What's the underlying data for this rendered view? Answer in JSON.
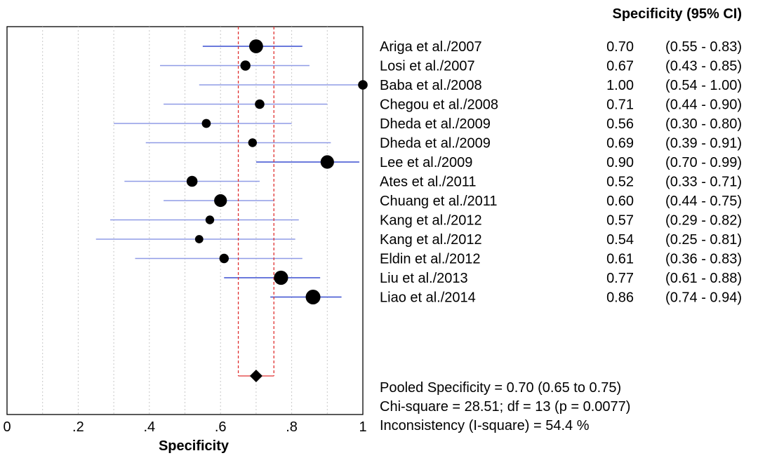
{
  "chart_data": {
    "type": "forest",
    "column_header": "Specificity (95% CI)",
    "xlabel": "Specificity",
    "xlim": [
      0,
      1
    ],
    "x_ticks": [
      "0",
      ".2",
      ".4",
      ".6",
      ".8",
      "1"
    ],
    "grid": "vertical-dotted",
    "studies": [
      {
        "label": "Ariga et al./2007",
        "value": 0.7,
        "ci": [
          0.55,
          0.83
        ],
        "estimate_text": "0.70",
        "ci_text": "(0.55 - 0.83)"
      },
      {
        "label": "Losi et al./2007",
        "value": 0.67,
        "ci": [
          0.43,
          0.85
        ],
        "estimate_text": "0.67",
        "ci_text": "(0.43 - 0.85)"
      },
      {
        "label": "Baba et al./2008",
        "value": 1.0,
        "ci": [
          0.54,
          1.0
        ],
        "estimate_text": "1.00",
        "ci_text": "(0.54 - 1.00)"
      },
      {
        "label": "Chegou et al./2008",
        "value": 0.71,
        "ci": [
          0.44,
          0.9
        ],
        "estimate_text": "0.71",
        "ci_text": "(0.44 - 0.90)"
      },
      {
        "label": "Dheda et al./2009",
        "value": 0.56,
        "ci": [
          0.3,
          0.8
        ],
        "estimate_text": "0.56",
        "ci_text": "(0.30 - 0.80)"
      },
      {
        "label": "Dheda et al./2009",
        "value": 0.69,
        "ci": [
          0.39,
          0.91
        ],
        "estimate_text": "0.69",
        "ci_text": "(0.39 - 0.91)"
      },
      {
        "label": "Lee et al./2009",
        "value": 0.9,
        "ci": [
          0.7,
          0.99
        ],
        "estimate_text": "0.90",
        "ci_text": "(0.70 - 0.99)"
      },
      {
        "label": "Ates et al./2011",
        "value": 0.52,
        "ci": [
          0.33,
          0.71
        ],
        "estimate_text": "0.52",
        "ci_text": "(0.33 - 0.71)"
      },
      {
        "label": "Chuang et al./2011",
        "value": 0.6,
        "ci": [
          0.44,
          0.75
        ],
        "estimate_text": "0.60",
        "ci_text": "(0.44 - 0.75)"
      },
      {
        "label": "Kang et al./2012",
        "value": 0.57,
        "ci": [
          0.29,
          0.82
        ],
        "estimate_text": "0.57",
        "ci_text": "(0.29 - 0.82)"
      },
      {
        "label": "Kang et al./2012",
        "value": 0.54,
        "ci": [
          0.25,
          0.81
        ],
        "estimate_text": "0.54",
        "ci_text": "(0.25 - 0.81)"
      },
      {
        "label": "Eldin et al./2012",
        "value": 0.61,
        "ci": [
          0.36,
          0.83
        ],
        "estimate_text": "0.61",
        "ci_text": "(0.36 - 0.83)"
      },
      {
        "label": "Liu et al./2013",
        "value": 0.77,
        "ci": [
          0.61,
          0.88
        ],
        "estimate_text": "0.77",
        "ci_text": "(0.61 - 0.88)"
      },
      {
        "label": "Liao et al./2014",
        "value": 0.86,
        "ci": [
          0.74,
          0.94
        ],
        "estimate_text": "0.86",
        "ci_text": "(0.74 - 0.94)"
      }
    ],
    "pooled": {
      "value": 0.7,
      "ci": [
        0.65,
        0.75
      ]
    },
    "summary_lines": [
      "Pooled Specificity = 0.70 (0.65 to 0.75)",
      "Chi-square = 28.51; df =  13 (p = 0.0077)",
      "Inconsistency (I-square) = 54.4 %"
    ],
    "colors": {
      "ci_line": "#3a4fd0",
      "ci_line_light": "#8f9be6",
      "pooled_box": "#e03030",
      "point": "#000000",
      "grid": "#c8c8c8"
    }
  }
}
